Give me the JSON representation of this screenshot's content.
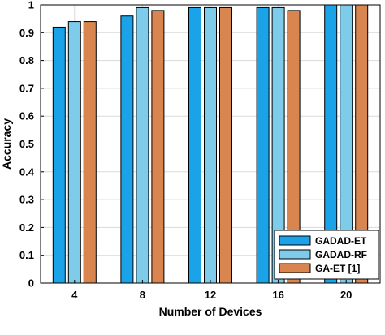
{
  "chart_data": {
    "type": "bar",
    "title": "",
    "xlabel": "Number of Devices",
    "ylabel": "Accuracy",
    "categories": [
      "4",
      "8",
      "12",
      "16",
      "20"
    ],
    "ylim": [
      0,
      1
    ],
    "yticks": [
      "0",
      "0.1",
      "0.2",
      "0.3",
      "0.4",
      "0.5",
      "0.6",
      "0.7",
      "0.8",
      "0.9",
      "1"
    ],
    "grid": true,
    "legend_position": "bottom-right",
    "series": [
      {
        "name": "GADAD-ET",
        "color": "#1aa3e8",
        "values": [
          0.92,
          0.96,
          0.99,
          0.99,
          1.0
        ]
      },
      {
        "name": "GADAD-RF",
        "color": "#7fcbea",
        "values": [
          0.94,
          0.99,
          0.99,
          0.99,
          1.0
        ]
      },
      {
        "name": "GA-ET [1]",
        "color": "#d9854f",
        "values": [
          0.94,
          0.98,
          0.99,
          0.98,
          1.0
        ]
      }
    ]
  }
}
